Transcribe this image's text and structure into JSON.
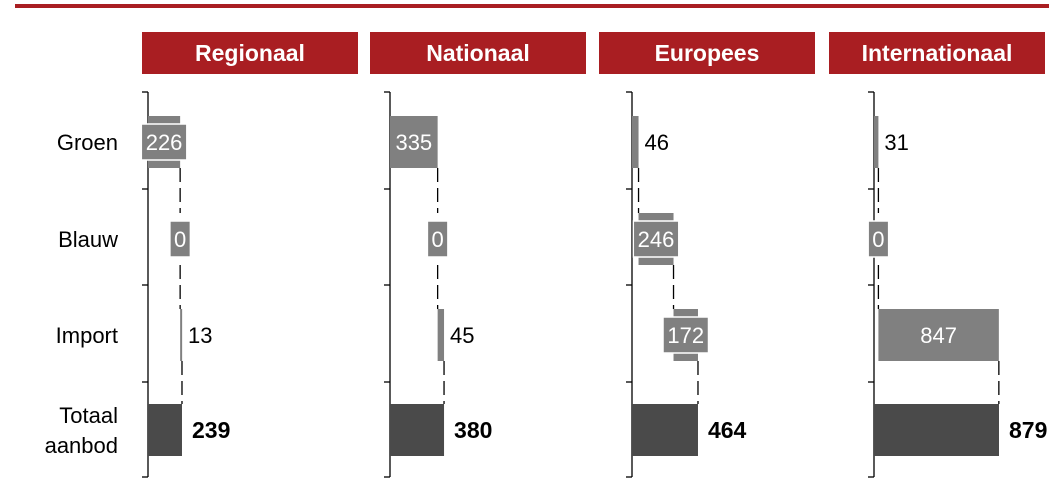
{
  "chart_data": {
    "type": "bar",
    "categories": [
      "Groen",
      "Blauw",
      "Import",
      "Totaal aanbod"
    ],
    "category_lines": [
      [
        "Groen"
      ],
      [
        "Blauw"
      ],
      [
        "Import"
      ],
      [
        "Totaal",
        "aanbod"
      ]
    ],
    "panels": [
      {
        "title": "Regionaal",
        "values": [
          226,
          0,
          13
        ],
        "total": 239
      },
      {
        "title": "Nationaal",
        "values": [
          335,
          0,
          45
        ],
        "total": 380
      },
      {
        "title": "Europees",
        "values": [
          46,
          246,
          172
        ],
        "total": 464
      },
      {
        "title": "Internationaal",
        "values": [
          31,
          0,
          847
        ],
        "total": 879
      }
    ],
    "colors": {
      "accent": "#a91e22",
      "component_bar": "#808080",
      "total_bar": "#4a4a4a",
      "axis": "#000000"
    }
  }
}
